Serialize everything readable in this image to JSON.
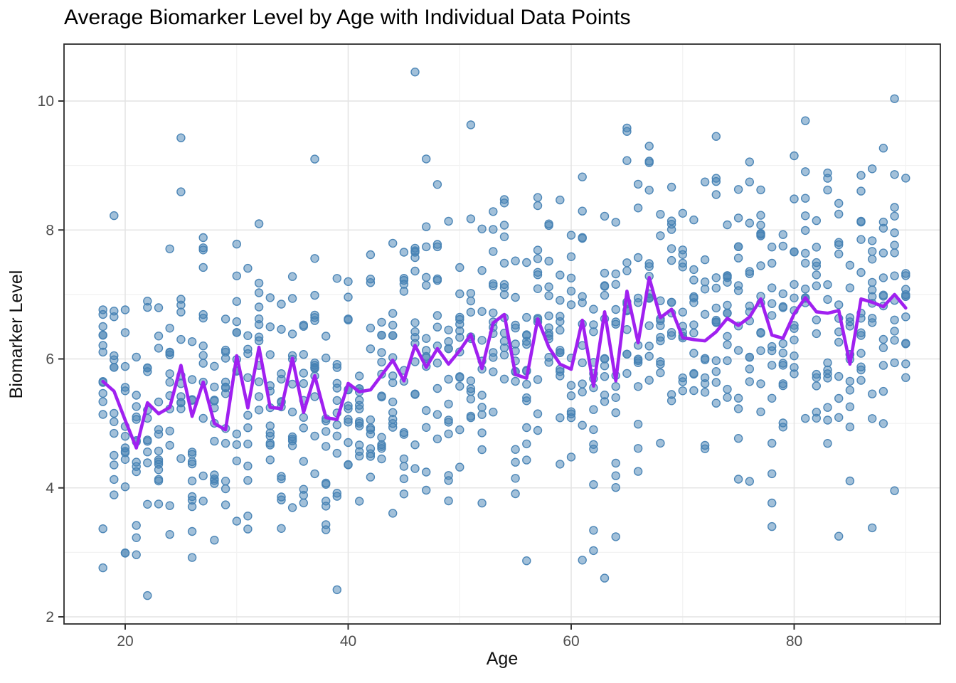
{
  "chart_data": {
    "type": "scatter",
    "title": "Average Biomarker Level by Age with Individual Data Points",
    "xlabel": "Age",
    "ylabel": "Biomarker Level",
    "x_ticks": [
      20,
      40,
      60,
      80
    ],
    "x_minor_ticks": [
      30,
      50,
      70,
      90
    ],
    "y_ticks": [
      2,
      4,
      6,
      8,
      10
    ],
    "y_minor_ticks": [
      3,
      5,
      7,
      9
    ],
    "xlim": [
      14.6,
      93.4
    ],
    "ylim": [
      1.89,
      10.88
    ],
    "grid": true,
    "legend": "none",
    "colors": {
      "point": "#4682B4",
      "line": "#A020F0",
      "grid_major": "#E4E4E4",
      "grid_minor": "#F2F2F2",
      "panel_border": "#2B2B2B",
      "tick_mark": "#333333",
      "tick_label": "#4D4D4D",
      "title": "#000000",
      "axis_title": "#111111",
      "background": "#FFFFFF"
    },
    "mean_line": {
      "name": "Average Biomarker Level by Age",
      "ages": [
        18,
        19,
        20,
        21,
        22,
        23,
        24,
        25,
        26,
        27,
        28,
        29,
        30,
        31,
        32,
        33,
        34,
        35,
        36,
        37,
        38,
        39,
        40,
        41,
        42,
        43,
        44,
        45,
        46,
        47,
        48,
        49,
        50,
        51,
        52,
        53,
        54,
        55,
        56,
        57,
        58,
        59,
        60,
        61,
        62,
        63,
        64,
        65,
        66,
        67,
        68,
        69,
        70,
        71,
        72,
        73,
        74,
        75,
        76,
        77,
        78,
        79,
        80,
        81,
        82,
        83,
        84,
        85,
        86,
        87,
        88,
        89,
        90
      ],
      "values": [
        5.65,
        5.5,
        5.05,
        4.62,
        5.32,
        5.15,
        5.25,
        5.9,
        5.11,
        5.64,
        5.0,
        4.9,
        6.05,
        5.24,
        6.18,
        5.25,
        5.23,
        6.01,
        5.17,
        5.74,
        5.09,
        5.06,
        5.62,
        5.49,
        5.52,
        5.75,
        5.98,
        5.66,
        6.21,
        5.87,
        6.16,
        5.92,
        6.13,
        6.38,
        5.85,
        6.56,
        6.69,
        5.76,
        5.7,
        6.62,
        6.18,
        5.92,
        5.84,
        6.6,
        5.58,
        6.73,
        5.66,
        7.05,
        6.25,
        7.26,
        6.64,
        6.77,
        6.33,
        6.3,
        6.28,
        6.42,
        6.63,
        6.52,
        6.65,
        6.93,
        6.37,
        6.32,
        6.7,
        6.95,
        6.73,
        6.71,
        6.75,
        5.92,
        6.93,
        6.88,
        6.81,
        7.0,
        6.79
      ]
    },
    "scatter": {
      "description": "individual data points, one vertical column per integer age, semi-transparent",
      "points_per_age_min": 12,
      "points_per_age_max": 14,
      "spread_sd": 1.12,
      "seed": 42,
      "value_clip": [
        2.3,
        10.45
      ],
      "point_alpha": 0.5,
      "outlier_points": [
        [
          46,
          10.45
        ],
        [
          51,
          9.63
        ],
        [
          25,
          9.43
        ],
        [
          67,
          9.3
        ],
        [
          88,
          9.27
        ],
        [
          80,
          9.15
        ],
        [
          37,
          9.1
        ],
        [
          22,
          2.33
        ],
        [
          39,
          2.42
        ],
        [
          63,
          2.6
        ],
        [
          18,
          2.76
        ],
        [
          56,
          2.87
        ],
        [
          61,
          2.88
        ],
        [
          78,
          3.4
        ],
        [
          87,
          3.38
        ],
        [
          84,
          3.25
        ]
      ]
    }
  }
}
